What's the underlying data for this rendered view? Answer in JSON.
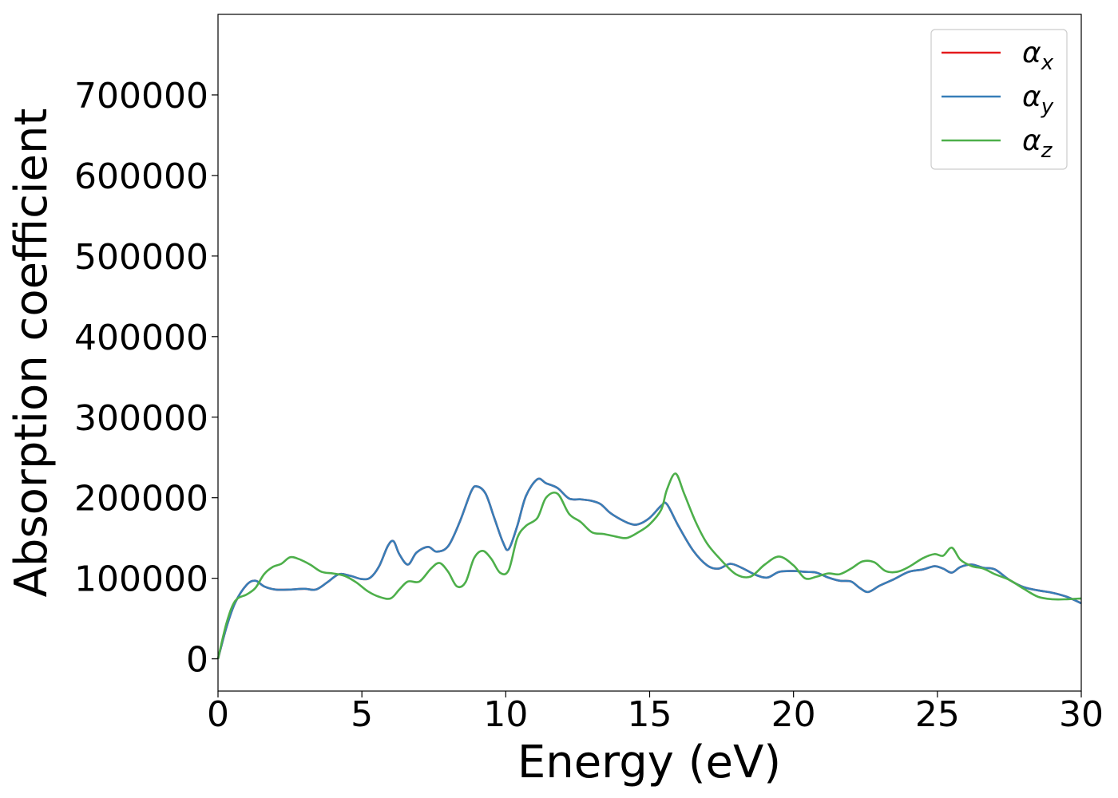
{
  "chart_data": {
    "type": "line",
    "title": "",
    "xlabel": "Energy (eV)",
    "ylabel": "Absorption coefficient",
    "xlim": [
      0,
      30
    ],
    "ylim": [
      -40000,
      800000
    ],
    "xticks": [
      0,
      5,
      10,
      15,
      20,
      25,
      30
    ],
    "yticks": [
      0,
      100000,
      200000,
      300000,
      400000,
      500000,
      600000,
      700000
    ],
    "grid": false,
    "legend_position": "top-right",
    "series": [
      {
        "name": "αx",
        "label_base": "α",
        "label_sub": "x",
        "color": "#e41a1c",
        "x": [
          0,
          0.3,
          0.6,
          1.0,
          1.3,
          1.6,
          2.0,
          2.5,
          3.0,
          3.4,
          3.8,
          4.2,
          4.6,
          5.0,
          5.3,
          5.6,
          5.9,
          6.1,
          6.3,
          6.6,
          6.9,
          7.3,
          7.6,
          8.0,
          8.4,
          8.8,
          9.0,
          9.3,
          9.6,
          9.9,
          10.1,
          10.4,
          10.7,
          11.1,
          11.4,
          11.8,
          12.2,
          12.6,
          13.0,
          13.3,
          13.6,
          13.9,
          14.3,
          14.6,
          15.0,
          15.4,
          15.6,
          16.0,
          16.5,
          17.0,
          17.4,
          17.8,
          18.2,
          18.7,
          19.1,
          19.5,
          20.0,
          20.4,
          20.8,
          21.2,
          21.6,
          22.0,
          22.3,
          22.6,
          23.0,
          23.5,
          24.0,
          24.5,
          24.9,
          25.2,
          25.5,
          25.8,
          26.2,
          26.6,
          27.0,
          27.5,
          28.0,
          28.5,
          29.0,
          29.5,
          30.0
        ],
        "values": [
          0,
          40000,
          70000,
          92000,
          97000,
          90000,
          86000,
          86000,
          87000,
          86000,
          95000,
          105000,
          103000,
          99000,
          101000,
          115000,
          140000,
          146000,
          130000,
          117000,
          132000,
          139000,
          133000,
          140000,
          170000,
          208000,
          214000,
          205000,
          175000,
          145000,
          136000,
          165000,
          202000,
          223000,
          218000,
          212000,
          199000,
          198000,
          196000,
          192000,
          182000,
          175000,
          168000,
          167000,
          175000,
          190000,
          192000,
          165000,
          135000,
          116000,
          112000,
          118000,
          113000,
          104000,
          101000,
          108000,
          109000,
          108000,
          107000,
          101000,
          97000,
          96000,
          88000,
          83000,
          91000,
          99000,
          108000,
          111000,
          115000,
          112000,
          107000,
          114000,
          117000,
          113000,
          111000,
          98000,
          89000,
          85000,
          82000,
          77000,
          69000
        ]
      },
      {
        "name": "αy",
        "label_base": "α",
        "label_sub": "y",
        "color": "#377eb8",
        "x": [
          0,
          0.3,
          0.6,
          1.0,
          1.3,
          1.6,
          2.0,
          2.5,
          3.0,
          3.4,
          3.8,
          4.2,
          4.6,
          5.0,
          5.3,
          5.6,
          5.9,
          6.1,
          6.3,
          6.6,
          6.9,
          7.3,
          7.6,
          8.0,
          8.4,
          8.8,
          9.0,
          9.3,
          9.6,
          9.9,
          10.1,
          10.4,
          10.7,
          11.1,
          11.4,
          11.8,
          12.2,
          12.6,
          13.0,
          13.3,
          13.6,
          13.9,
          14.3,
          14.6,
          15.0,
          15.4,
          15.6,
          16.0,
          16.5,
          17.0,
          17.4,
          17.8,
          18.2,
          18.7,
          19.1,
          19.5,
          20.0,
          20.4,
          20.8,
          21.2,
          21.6,
          22.0,
          22.3,
          22.6,
          23.0,
          23.5,
          24.0,
          24.5,
          24.9,
          25.2,
          25.5,
          25.8,
          26.2,
          26.6,
          27.0,
          27.5,
          28.0,
          28.5,
          29.0,
          29.5,
          30.0
        ],
        "values": [
          0,
          40000,
          70000,
          92000,
          97000,
          90000,
          86000,
          86000,
          87000,
          86000,
          95000,
          105000,
          103000,
          99000,
          101000,
          115000,
          140000,
          146000,
          130000,
          117000,
          132000,
          139000,
          133000,
          140000,
          170000,
          208000,
          214000,
          205000,
          175000,
          145000,
          136000,
          165000,
          202000,
          223000,
          218000,
          212000,
          199000,
          198000,
          196000,
          192000,
          182000,
          175000,
          168000,
          167000,
          175000,
          190000,
          192000,
          165000,
          135000,
          116000,
          112000,
          118000,
          113000,
          104000,
          101000,
          108000,
          109000,
          108000,
          107000,
          101000,
          97000,
          96000,
          88000,
          83000,
          91000,
          99000,
          108000,
          111000,
          115000,
          112000,
          107000,
          114000,
          117000,
          113000,
          111000,
          98000,
          89000,
          85000,
          82000,
          77000,
          69000
        ]
      },
      {
        "name": "αz",
        "label_base": "α",
        "label_sub": "z",
        "color": "#4daf4a",
        "x": [
          0,
          0.3,
          0.6,
          1.0,
          1.3,
          1.6,
          1.9,
          2.2,
          2.5,
          2.8,
          3.2,
          3.6,
          4.0,
          4.4,
          4.8,
          5.2,
          5.6,
          6.0,
          6.3,
          6.6,
          7.0,
          7.4,
          7.7,
          8.0,
          8.3,
          8.6,
          8.9,
          9.2,
          9.5,
          9.8,
          10.1,
          10.4,
          10.7,
          11.1,
          11.4,
          11.8,
          12.2,
          12.6,
          13.0,
          13.4,
          13.8,
          14.2,
          14.6,
          15.0,
          15.4,
          15.6,
          15.9,
          16.2,
          16.6,
          17.0,
          17.5,
          18.0,
          18.5,
          19.0,
          19.5,
          20.0,
          20.4,
          20.8,
          21.2,
          21.6,
          22.0,
          22.4,
          22.8,
          23.2,
          23.6,
          24.0,
          24.5,
          24.9,
          25.2,
          25.5,
          25.8,
          26.2,
          26.6,
          27.0,
          27.5,
          28.0,
          28.5,
          29.0,
          29.5,
          30.0
        ],
        "values": [
          0,
          45000,
          72000,
          80000,
          88000,
          105000,
          114000,
          118000,
          126000,
          124000,
          117000,
          108000,
          106000,
          103000,
          95000,
          84000,
          77000,
          75000,
          86000,
          96000,
          96000,
          112000,
          119000,
          108000,
          90000,
          95000,
          125000,
          134000,
          124000,
          107000,
          110000,
          150000,
          165000,
          175000,
          200000,
          205000,
          180000,
          170000,
          157000,
          155000,
          152000,
          150000,
          157000,
          167000,
          185000,
          210000,
          230000,
          205000,
          170000,
          143000,
          122000,
          105000,
          102000,
          117000,
          127000,
          116000,
          100000,
          102000,
          106000,
          105000,
          112000,
          121000,
          120000,
          109000,
          108000,
          114000,
          125000,
          130000,
          128000,
          138000,
          123000,
          115000,
          112000,
          105000,
          98000,
          87000,
          77000,
          74000,
          74000,
          75000
        ]
      }
    ]
  }
}
